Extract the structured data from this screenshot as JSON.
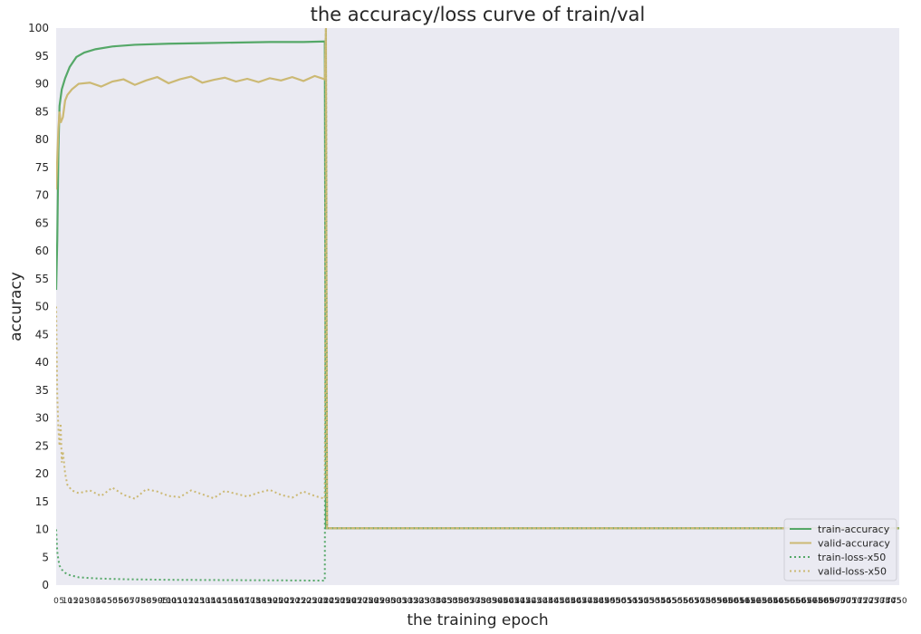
{
  "chart_data": {
    "type": "line",
    "title": "the accuracy/loss curve of train/val",
    "xlabel": "the training epoch",
    "ylabel": "accuracy",
    "xlim": [
      0,
      750
    ],
    "ylim": [
      0,
      100
    ],
    "yticks": [
      0,
      5,
      10,
      15,
      20,
      25,
      30,
      35,
      40,
      45,
      50,
      55,
      60,
      65,
      70,
      75,
      80,
      85,
      90,
      95,
      100
    ],
    "x_tick_step": 5,
    "grid": false,
    "legend_position": "bottom-right",
    "colors": {
      "background": "#eaeaf2",
      "train": "#55a868",
      "valid": "#ccb974"
    },
    "series": [
      {
        "name": "train-accuracy",
        "style": "solid",
        "color": "#55a868",
        "points": [
          [
            0,
            53
          ],
          [
            1,
            62
          ],
          [
            2,
            78
          ],
          [
            3,
            86
          ],
          [
            5,
            89
          ],
          [
            8,
            91
          ],
          [
            12,
            93
          ],
          [
            18,
            94.8
          ],
          [
            25,
            95.6
          ],
          [
            35,
            96.2
          ],
          [
            50,
            96.7
          ],
          [
            70,
            97
          ],
          [
            100,
            97.2
          ],
          [
            130,
            97.3
          ],
          [
            160,
            97.4
          ],
          [
            190,
            97.5
          ],
          [
            220,
            97.5
          ],
          [
            239,
            97.6
          ],
          [
            240,
            10.2
          ],
          [
            750,
            10.2
          ]
        ]
      },
      {
        "name": "valid-accuracy",
        "style": "solid",
        "color": "#ccb974",
        "points": [
          [
            0,
            71
          ],
          [
            2,
            82
          ],
          [
            3,
            85
          ],
          [
            4,
            83
          ],
          [
            6,
            84
          ],
          [
            8,
            87
          ],
          [
            10,
            88
          ],
          [
            14,
            89
          ],
          [
            20,
            90
          ],
          [
            30,
            90.2
          ],
          [
            40,
            89.5
          ],
          [
            50,
            90.4
          ],
          [
            60,
            90.8
          ],
          [
            70,
            89.8
          ],
          [
            80,
            90.6
          ],
          [
            90,
            91.2
          ],
          [
            100,
            90.1
          ],
          [
            110,
            90.8
          ],
          [
            120,
            91.3
          ],
          [
            130,
            90.2
          ],
          [
            140,
            90.7
          ],
          [
            150,
            91.1
          ],
          [
            160,
            90.4
          ],
          [
            170,
            90.9
          ],
          [
            180,
            90.3
          ],
          [
            190,
            91
          ],
          [
            200,
            90.6
          ],
          [
            210,
            91.2
          ],
          [
            220,
            90.5
          ],
          [
            230,
            91.4
          ],
          [
            239,
            90.8
          ],
          [
            240,
            100
          ],
          [
            241,
            10.2
          ],
          [
            750,
            10.2
          ]
        ]
      },
      {
        "name": "train-loss-x50",
        "style": "dotted",
        "color": "#55a868",
        "points": [
          [
            0,
            10
          ],
          [
            1,
            6
          ],
          [
            2,
            4.5
          ],
          [
            3,
            3.5
          ],
          [
            5,
            2.8
          ],
          [
            8,
            2.2
          ],
          [
            12,
            1.8
          ],
          [
            20,
            1.4
          ],
          [
            35,
            1.2
          ],
          [
            60,
            1.05
          ],
          [
            100,
            0.95
          ],
          [
            150,
            0.9
          ],
          [
            200,
            0.85
          ],
          [
            239,
            0.8
          ],
          [
            240,
            100
          ],
          [
            241,
            10.2
          ],
          [
            750,
            10.2
          ]
        ]
      },
      {
        "name": "valid-loss-x50",
        "style": "dotted",
        "color": "#ccb974",
        "points": [
          [
            0,
            50
          ],
          [
            1,
            34
          ],
          [
            2,
            28
          ],
          [
            3,
            25
          ],
          [
            4,
            29
          ],
          [
            5,
            22
          ],
          [
            6,
            24
          ],
          [
            8,
            20
          ],
          [
            10,
            18
          ],
          [
            14,
            17
          ],
          [
            20,
            16.5
          ],
          [
            30,
            17
          ],
          [
            40,
            16
          ],
          [
            50,
            17.5
          ],
          [
            60,
            16.2
          ],
          [
            70,
            15.5
          ],
          [
            80,
            17.2
          ],
          [
            90,
            16.8
          ],
          [
            100,
            16
          ],
          [
            110,
            15.8
          ],
          [
            120,
            17
          ],
          [
            130,
            16.3
          ],
          [
            140,
            15.6
          ],
          [
            150,
            16.9
          ],
          [
            160,
            16.4
          ],
          [
            170,
            15.9
          ],
          [
            180,
            16.6
          ],
          [
            190,
            17.1
          ],
          [
            200,
            16.2
          ],
          [
            210,
            15.7
          ],
          [
            220,
            16.8
          ],
          [
            230,
            16
          ],
          [
            239,
            15.5
          ],
          [
            240,
            100
          ],
          [
            241,
            10.2
          ],
          [
            750,
            10.2
          ]
        ]
      }
    ]
  }
}
